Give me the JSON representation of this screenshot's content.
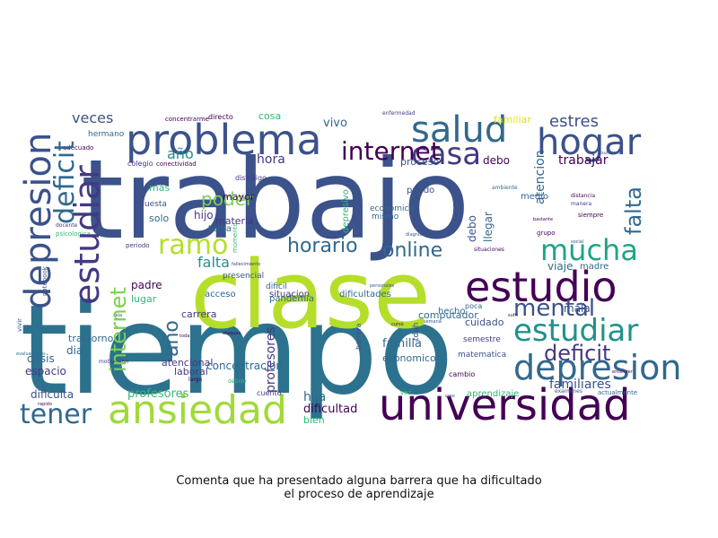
{
  "caption": {
    "line1": "Comenta que ha presentado alguna barrera que ha dificultado",
    "line2": "el proceso de aprendizaje"
  },
  "colors": {
    "purple": "#440154",
    "indigo": "#3b528b",
    "blue": "#31688e",
    "teal": "#21918c",
    "green": "#35b779",
    "lime": "#b5de2b",
    "yellow": "#dde318"
  },
  "words": [
    "trabajo",
    "tiempo",
    "clase",
    "universidad",
    "ansiedad",
    "problema",
    "estudio",
    "salud",
    "hogar",
    "casa",
    "depresion",
    "estudiar",
    "deficit",
    "mucha",
    "mental",
    "tener",
    "horario",
    "online",
    "ramo",
    "internet",
    "veces",
    "estres",
    "año",
    "poder",
    "falta",
    "hora",
    "familiares",
    "dificulta",
    "profesores",
    "dia",
    "crisis",
    "espacio",
    "laboral",
    "atencional",
    "concentracion",
    "carrera",
    "padre",
    "lugar",
    "mas",
    "hijo",
    "solo",
    "llegar",
    "debo",
    "trabajar",
    "atencion",
    "viaje",
    "madre",
    "mala",
    "familia",
    "economico",
    "computador",
    "trastorno",
    "vivo",
    "cosa",
    "familiar",
    "dificultad",
    "bien",
    "hija",
    "acceso",
    "mayor",
    "pandemia",
    "situacion",
    "dificil",
    "cuidado",
    "cuesta",
    "tema",
    "presencial",
    "depresivo",
    "proceso",
    "puedo",
    "hecho",
    "mismo",
    "economica",
    "semestre",
    "matematica",
    "aprendizaje",
    "dificultades",
    "barrera",
    "poca",
    "tdah",
    "hermano",
    "colegio",
    "adecuado",
    "concentrarme",
    "directo",
    "momento",
    "distraigo",
    "materia",
    "conectividad",
    "cambio",
    "medio",
    "enfermedad",
    "diagnostico",
    "vez",
    "cuento",
    "largo",
    "debido",
    "ahora",
    "vivir",
    "docente",
    "psicologica",
    "notebook",
    "panico",
    "distancia",
    "manera",
    "siempre",
    "grupo",
    "situaciones",
    "social",
    "bastante",
    "suficiente",
    "animo",
    "facil",
    "ambiente",
    "complicado",
    "ruido",
    "persona",
    "enfermedades",
    "evaluaciones",
    "rapido",
    "motivacion",
    "sala",
    "angustia",
    "periodo",
    "fallecimiento",
    "toda",
    "ataques",
    "personales",
    "semana",
    "turnos",
    "actualmente",
    "examenes",
    "entender",
    "creo",
    "costado",
    "gran",
    "sufri",
    "curso",
    "santiago",
    "mente",
    "carga",
    "afecto",
    "segundo",
    "cierto",
    "cancer",
    "nivelacion",
    "anteriormente",
    "ayuda",
    "dudas",
    "desorden"
  ]
}
